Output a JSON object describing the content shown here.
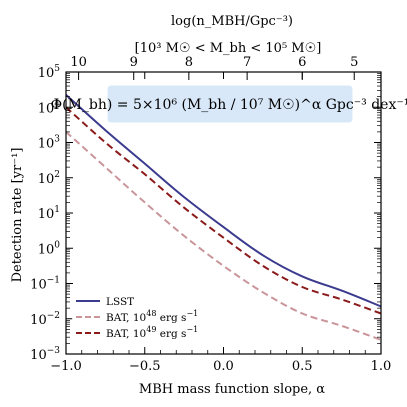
{
  "chart_data": {
    "type": "line",
    "xlabel": "MBH mass function slope, α",
    "ylabel": "Detection rate [yr⁻¹]",
    "xlim": [
      -1.0,
      1.0
    ],
    "ylim_log10": [
      -3,
      5
    ],
    "y_scale": "log",
    "x_ticks": [
      -1.0,
      -0.5,
      0.0,
      0.5,
      1.0
    ],
    "x_tick_labels": [
      "−1.0",
      "−0.5",
      "0.0",
      "0.5",
      "1.0"
    ],
    "y_ticks_exp": [
      -3,
      -2,
      -1,
      0,
      1,
      2,
      3,
      4,
      5
    ],
    "top_axis": {
      "label_line1": "log(n_MBH/Gpc⁻³)",
      "label_line2": "[10³ M☉ < M_bh < 10⁵ M☉]",
      "tick_labels": [
        "10",
        "9",
        "8",
        "7",
        "6",
        "5"
      ],
      "tick_positions_alpha": [
        -0.92,
        -0.57,
        -0.22,
        0.15,
        0.5,
        0.83
      ]
    },
    "annotation": "Φ(M_bh) = 5×10⁶ (M_bh / 10⁷ M☉)^α Gpc⁻³ dex⁻¹",
    "series": [
      {
        "name": "LSST",
        "color": "#3b3b8f",
        "dash": "solid",
        "x": [
          -1.0,
          -0.75,
          -0.5,
          -0.25,
          0.0,
          0.25,
          0.5,
          0.75,
          1.0
        ],
        "log10_y": [
          4.35,
          3.35,
          2.4,
          1.45,
          0.6,
          -0.2,
          -0.8,
          -1.2,
          -1.65
        ]
      },
      {
        "name": "BAT, 10^48 erg s^-1",
        "color": "#c9959a",
        "dash": "dashed",
        "x": [
          -1.0,
          -0.75,
          -0.5,
          -0.25,
          0.0,
          0.25,
          0.5,
          0.75,
          1.0
        ],
        "log10_y": [
          3.3,
          2.3,
          1.3,
          0.35,
          -0.5,
          -1.25,
          -1.85,
          -2.2,
          -2.6
        ]
      },
      {
        "name": "BAT, 10^49 erg s^-1",
        "color": "#8b1a1a",
        "dash": "dashed",
        "x": [
          -1.0,
          -0.75,
          -0.5,
          -0.25,
          0.0,
          0.25,
          0.5,
          0.75,
          1.0
        ],
        "log10_y": [
          4.0,
          3.0,
          2.1,
          1.15,
          0.3,
          -0.5,
          -1.1,
          -1.45,
          -1.85
        ]
      }
    ],
    "legend": {
      "placement": "lower-left",
      "entries": [
        {
          "base": "LSST",
          "exp": "",
          "suffix": ""
        },
        {
          "base": "BAT, 10",
          "exp": "48",
          "suffix": " erg s",
          "suffix_exp": "−1"
        },
        {
          "base": "BAT, 10",
          "exp": "49",
          "suffix": " erg s",
          "suffix_exp": "−1"
        }
      ]
    }
  }
}
